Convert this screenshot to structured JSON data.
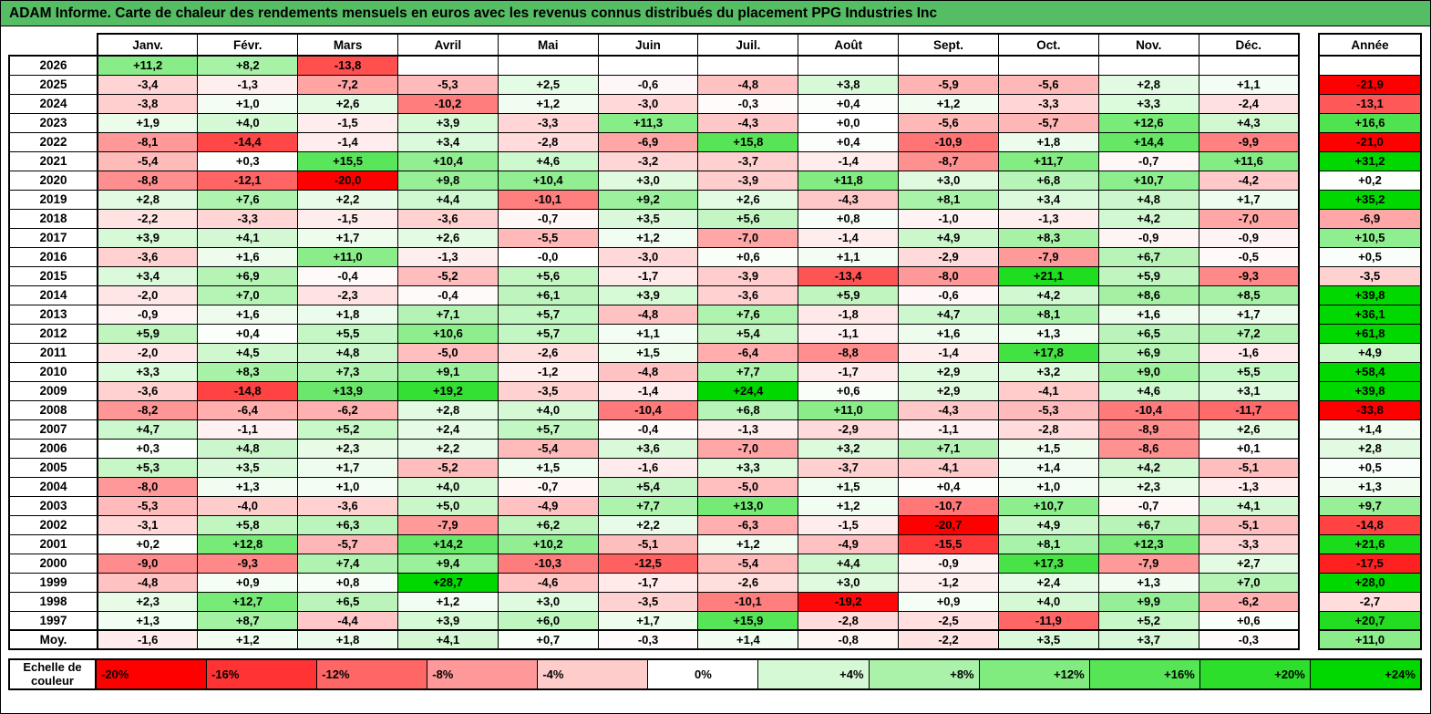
{
  "chart_data": {
    "type": "heatmap",
    "title": "ADAM Informe. Carte de chaleur des rendements mensuels en euros avec les revenus connus distribués du placement PPG Industries Inc",
    "columns": [
      "Janv.",
      "Févr.",
      "Mars",
      "Avril",
      "Mai",
      "Juin",
      "Juil.",
      "Août",
      "Sept.",
      "Oct.",
      "Nov.",
      "Déc."
    ],
    "annual_column_label": "Année",
    "average_row_label": "Moy.",
    "rows": [
      {
        "year": "2026",
        "values": [
          "+11,2",
          "+8,2",
          "-13,8",
          "",
          "",
          "",
          "",
          "",
          "",
          "",
          "",
          ""
        ],
        "annual": ""
      },
      {
        "year": "2025",
        "values": [
          "-3,4",
          "-1,3",
          "-7,2",
          "-5,3",
          "+2,5",
          "-0,6",
          "-4,8",
          "+3,8",
          "-5,9",
          "-5,6",
          "+2,8",
          "+1,1"
        ],
        "annual": "-21,9"
      },
      {
        "year": "2024",
        "values": [
          "-3,8",
          "+1,0",
          "+2,6",
          "-10,2",
          "+1,2",
          "-3,0",
          "-0,3",
          "+0,4",
          "+1,2",
          "-3,3",
          "+3,3",
          "-2,4"
        ],
        "annual": "-13,1"
      },
      {
        "year": "2023",
        "values": [
          "+1,9",
          "+4,0",
          "-1,5",
          "+3,9",
          "-3,3",
          "+11,3",
          "-4,3",
          "+0,0",
          "-5,6",
          "-5,7",
          "+12,6",
          "+4,3"
        ],
        "annual": "+16,6"
      },
      {
        "year": "2022",
        "values": [
          "-8,1",
          "-14,4",
          "-1,4",
          "+3,4",
          "-2,8",
          "-6,9",
          "+15,8",
          "+0,4",
          "-10,9",
          "+1,8",
          "+14,4",
          "-9,9"
        ],
        "annual": "-21,0"
      },
      {
        "year": "2021",
        "values": [
          "-5,4",
          "+0,3",
          "+15,5",
          "+10,4",
          "+4,6",
          "-3,2",
          "-3,7",
          "-1,4",
          "-8,7",
          "+11,7",
          "-0,7",
          "+11,6"
        ],
        "annual": "+31,2"
      },
      {
        "year": "2020",
        "values": [
          "-8,8",
          "-12,1",
          "-20,0",
          "+9,8",
          "+10,4",
          "+3,0",
          "-3,9",
          "+11,8",
          "+3,0",
          "+6,8",
          "+10,7",
          "-4,2"
        ],
        "annual": "+0,2"
      },
      {
        "year": "2019",
        "values": [
          "+2,8",
          "+7,6",
          "+2,2",
          "+4,4",
          "-10,1",
          "+9,2",
          "+2,6",
          "-4,3",
          "+8,1",
          "+3,4",
          "+4,8",
          "+1,7"
        ],
        "annual": "+35,2"
      },
      {
        "year": "2018",
        "values": [
          "-2,2",
          "-3,3",
          "-1,5",
          "-3,6",
          "-0,7",
          "+3,5",
          "+5,6",
          "+0,8",
          "-1,0",
          "-1,3",
          "+4,2",
          "-7,0"
        ],
        "annual": "-6,9"
      },
      {
        "year": "2017",
        "values": [
          "+3,9",
          "+4,1",
          "+1,7",
          "+2,6",
          "-5,5",
          "+1,2",
          "-7,0",
          "-1,4",
          "+4,9",
          "+8,3",
          "-0,9",
          "-0,9"
        ],
        "annual": "+10,5"
      },
      {
        "year": "2016",
        "values": [
          "-3,6",
          "+1,6",
          "+11,0",
          "-1,3",
          "-0,0",
          "-3,0",
          "+0,6",
          "+1,1",
          "-2,9",
          "-7,9",
          "+6,7",
          "-0,5"
        ],
        "annual": "+0,5"
      },
      {
        "year": "2015",
        "values": [
          "+3,4",
          "+6,9",
          "-0,4",
          "-5,2",
          "+5,6",
          "-1,7",
          "-3,9",
          "-13,4",
          "-8,0",
          "+21,1",
          "+5,9",
          "-9,3"
        ],
        "annual": "-3,5"
      },
      {
        "year": "2014",
        "values": [
          "-2,0",
          "+7,0",
          "-2,3",
          "-0,4",
          "+6,1",
          "+3,9",
          "-3,6",
          "+5,9",
          "-0,6",
          "+4,2",
          "+8,6",
          "+8,5"
        ],
        "annual": "+39,8"
      },
      {
        "year": "2013",
        "values": [
          "-0,9",
          "+1,6",
          "+1,8",
          "+7,1",
          "+5,7",
          "-4,8",
          "+7,6",
          "-1,8",
          "+4,7",
          "+8,1",
          "+1,6",
          "+1,7"
        ],
        "annual": "+36,1"
      },
      {
        "year": "2012",
        "values": [
          "+5,9",
          "+0,4",
          "+5,5",
          "+10,6",
          "+5,7",
          "+1,1",
          "+5,4",
          "-1,1",
          "+1,6",
          "+1,3",
          "+6,5",
          "+7,2"
        ],
        "annual": "+61,8"
      },
      {
        "year": "2011",
        "values": [
          "-2,0",
          "+4,5",
          "+4,8",
          "-5,0",
          "-2,6",
          "+1,5",
          "-6,4",
          "-8,8",
          "-1,4",
          "+17,8",
          "+6,9",
          "-1,6"
        ],
        "annual": "+4,9"
      },
      {
        "year": "2010",
        "values": [
          "+3,3",
          "+8,3",
          "+7,3",
          "+9,1",
          "-1,2",
          "-4,8",
          "+7,7",
          "-1,7",
          "+2,9",
          "+3,2",
          "+9,0",
          "+5,5"
        ],
        "annual": "+58,4"
      },
      {
        "year": "2009",
        "values": [
          "-3,6",
          "-14,8",
          "+13,9",
          "+19,2",
          "-3,5",
          "-1,4",
          "+24,4",
          "+0,6",
          "+2,9",
          "-4,1",
          "+4,6",
          "+3,1"
        ],
        "annual": "+39,8"
      },
      {
        "year": "2008",
        "values": [
          "-8,2",
          "-6,4",
          "-6,2",
          "+2,8",
          "+4,0",
          "-10,4",
          "+6,8",
          "+11,0",
          "-4,3",
          "-5,3",
          "-10,4",
          "-11,7"
        ],
        "annual": "-33,8"
      },
      {
        "year": "2007",
        "values": [
          "+4,7",
          "-1,1",
          "+5,2",
          "+2,4",
          "+5,7",
          "-0,4",
          "-1,3",
          "-2,9",
          "-1,1",
          "-2,8",
          "-8,9",
          "+2,6"
        ],
        "annual": "+1,4"
      },
      {
        "year": "2006",
        "values": [
          "+0,3",
          "+4,8",
          "+2,3",
          "+2,2",
          "-5,4",
          "+3,6",
          "-7,0",
          "+3,2",
          "+7,1",
          "+1,5",
          "-8,6",
          "+0,1"
        ],
        "annual": "+2,8"
      },
      {
        "year": "2005",
        "values": [
          "+5,3",
          "+3,5",
          "+1,7",
          "-5,2",
          "+1,5",
          "-1,6",
          "+3,3",
          "-3,7",
          "-4,1",
          "+1,4",
          "+4,2",
          "-5,1"
        ],
        "annual": "+0,5"
      },
      {
        "year": "2004",
        "values": [
          "-8,0",
          "+1,3",
          "+1,0",
          "+4,0",
          "-0,7",
          "+5,4",
          "-5,0",
          "+1,5",
          "+0,4",
          "+1,0",
          "+2,3",
          "-1,3"
        ],
        "annual": "+1,3"
      },
      {
        "year": "2003",
        "values": [
          "-5,3",
          "-4,0",
          "-3,6",
          "+5,0",
          "-4,9",
          "+7,7",
          "+13,0",
          "+1,2",
          "-10,7",
          "+10,7",
          "-0,7",
          "+4,1"
        ],
        "annual": "+9,7"
      },
      {
        "year": "2002",
        "values": [
          "-3,1",
          "+5,8",
          "+6,3",
          "-7,9",
          "+6,2",
          "+2,2",
          "-6,3",
          "-1,5",
          "-20,7",
          "+4,9",
          "+6,7",
          "-5,1"
        ],
        "annual": "-14,8"
      },
      {
        "year": "2001",
        "values": [
          "+0,2",
          "+12,8",
          "-5,7",
          "+14,2",
          "+10,2",
          "-5,1",
          "+1,2",
          "-4,9",
          "-15,5",
          "+8,1",
          "+12,3",
          "-3,3"
        ],
        "annual": "+21,6"
      },
      {
        "year": "2000",
        "values": [
          "-9,0",
          "-9,3",
          "+7,4",
          "+9,4",
          "-10,3",
          "-12,5",
          "-5,4",
          "+4,4",
          "-0,9",
          "+17,3",
          "-7,9",
          "+2,7"
        ],
        "annual": "-17,5"
      },
      {
        "year": "1999",
        "values": [
          "-4,8",
          "+0,9",
          "+0,8",
          "+28,7",
          "-4,6",
          "-1,7",
          "-2,6",
          "+3,0",
          "-1,2",
          "+2,4",
          "+1,3",
          "+7,0"
        ],
        "annual": "+28,0"
      },
      {
        "year": "1998",
        "values": [
          "+2,3",
          "+12,7",
          "+6,5",
          "+1,2",
          "+3,0",
          "-3,5",
          "-10,1",
          "-19,2",
          "+0,9",
          "+4,0",
          "+9,9",
          "-6,2"
        ],
        "annual": "-2,7"
      },
      {
        "year": "1997",
        "values": [
          "+1,3",
          "+8,7",
          "-4,4",
          "+3,9",
          "+6,0",
          "+1,7",
          "+15,9",
          "-2,8",
          "-2,5",
          "-11,9",
          "+5,2",
          "+0,6"
        ],
        "annual": "+20,7"
      },
      {
        "year": "Moy.",
        "values": [
          "-1,6",
          "+1,2",
          "+1,8",
          "+4,1",
          "+0,7",
          "-0,3",
          "+1,4",
          "-0,8",
          "-2,2",
          "+3,5",
          "+3,7",
          "-0,3"
        ],
        "annual": "+11,0"
      }
    ],
    "color_scale": {
      "label": "Echelle de couleur",
      "steps": [
        "-20%",
        "-16%",
        "-12%",
        "-8%",
        "-4%",
        "0%",
        "+4%",
        "+8%",
        "+12%",
        "+16%",
        "+20%",
        "+24%"
      ],
      "negative_limit": -20,
      "positive_limit": 24,
      "negative_color": "#FF0000",
      "neutral_color": "#FFFFFF",
      "positive_color": "#00D800"
    }
  },
  "colors": {
    "title_bg": "#55BD64",
    "border": "#000000"
  }
}
